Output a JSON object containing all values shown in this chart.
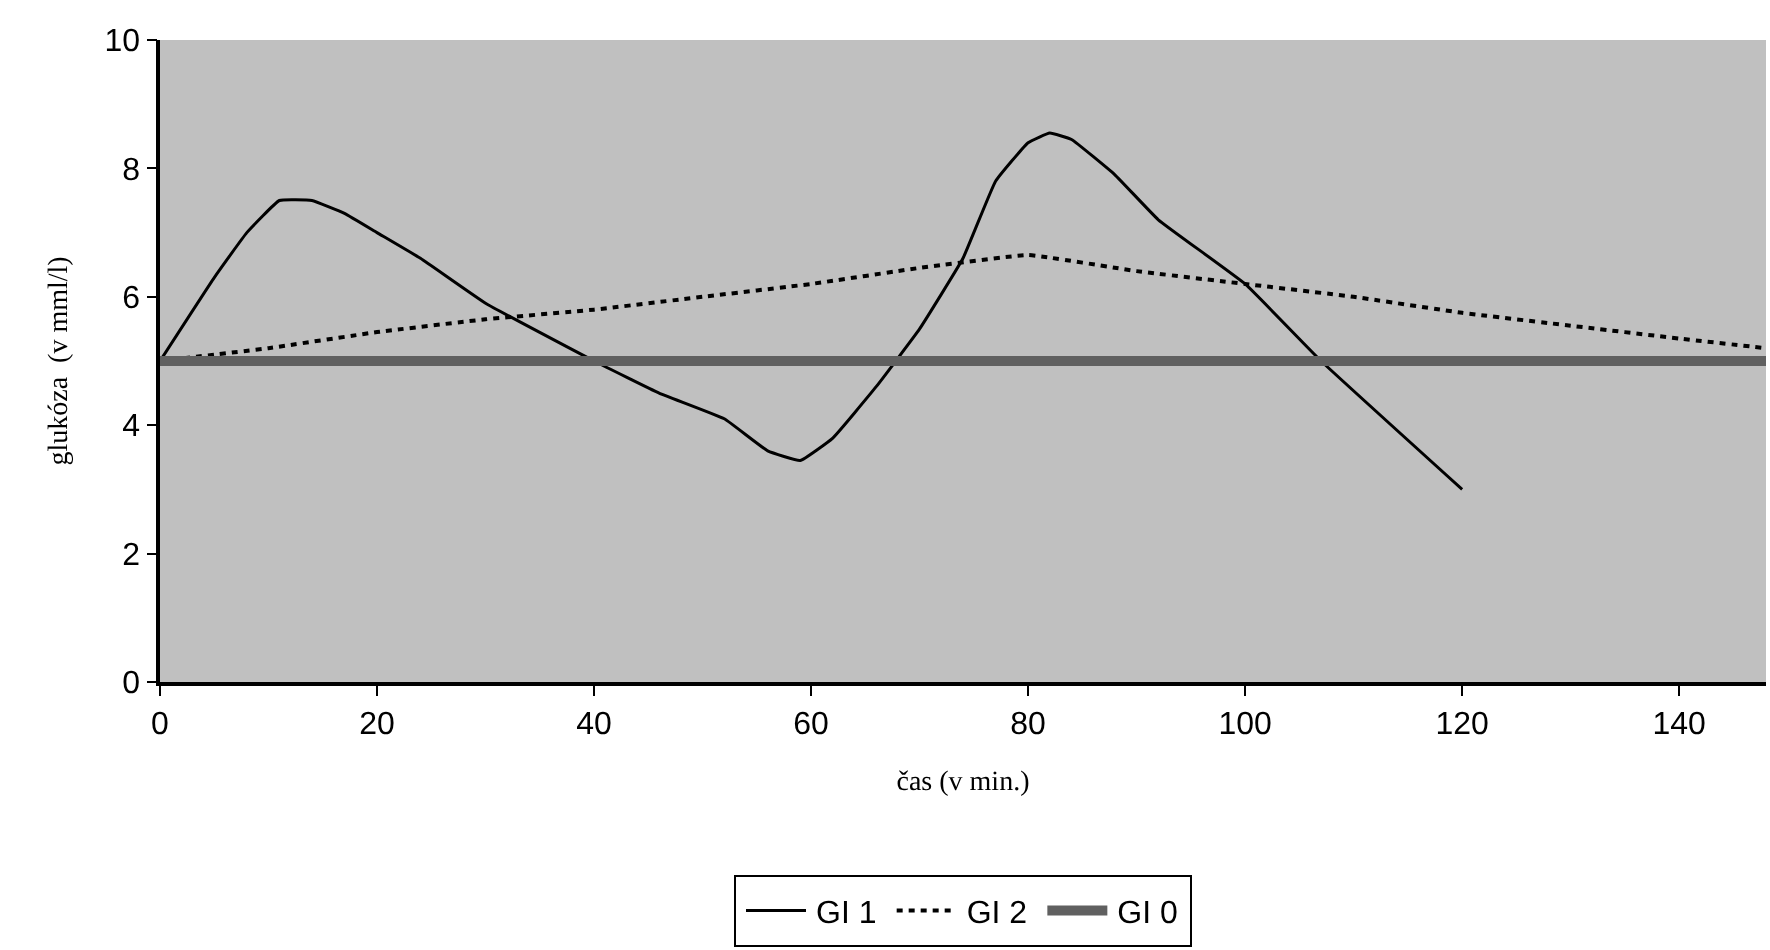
{
  "chart_data": {
    "type": "line",
    "xlabel": "čas (v min.)",
    "ylabel": "glukóza  (v mml/l)",
    "xlim": [
      0,
      148
    ],
    "xticks": [
      0,
      20,
      40,
      60,
      80,
      100,
      120,
      140
    ],
    "ylim": [
      0,
      10
    ],
    "yticks": [
      0,
      2,
      4,
      6,
      8,
      10
    ],
    "grid": false,
    "legend": "bottom",
    "marker": "none",
    "series": [
      {
        "name": "GI 1",
        "color": "#000000",
        "line_style": "solid",
        "x": [
          0,
          5,
          8,
          11,
          14,
          17,
          20,
          24,
          30,
          40,
          46,
          52,
          56,
          59,
          62,
          66,
          70,
          74,
          77,
          80,
          82,
          84,
          88,
          92,
          100,
          107,
          120
        ],
        "values": [
          5.0,
          6.3,
          7.0,
          7.5,
          7.5,
          7.3,
          7.0,
          6.6,
          5.9,
          5.0,
          4.5,
          4.1,
          3.6,
          3.45,
          3.8,
          4.6,
          5.5,
          6.6,
          7.8,
          8.4,
          8.55,
          8.45,
          7.9,
          7.2,
          6.2,
          5.0,
          3.0
        ]
      },
      {
        "name": "GI 2",
        "color": "#000000",
        "line_style": "dotted",
        "x": [
          0,
          10,
          20,
          30,
          40,
          50,
          60,
          70,
          80,
          90,
          100,
          110,
          120,
          130,
          140,
          148
        ],
        "values": [
          5.0,
          5.2,
          5.45,
          5.65,
          5.8,
          6.0,
          6.2,
          6.45,
          6.65,
          6.4,
          6.2,
          6.0,
          5.75,
          5.55,
          5.35,
          5.2
        ]
      },
      {
        "name": "GI 0",
        "color": "#606060",
        "line_style": "solid",
        "x": [
          0,
          148
        ],
        "values": [
          5.0,
          5.0
        ]
      }
    ]
  }
}
